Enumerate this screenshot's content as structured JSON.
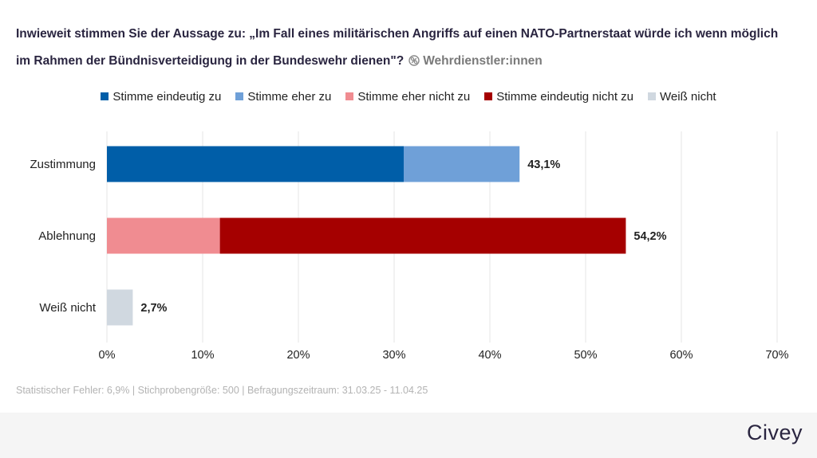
{
  "question": "Inwieweit stimmen Sie der Aussage zu: „Im Fall eines militärischen Angriffs auf einen NATO-Partnerstaat würde ich wenn möglich im Rahmen der Bündnisverteidigung in der Bundeswehr dienen\"?",
  "filter": "Wehrdienstler:innen",
  "icons": {
    "filter": "link-filter-icon"
  },
  "footer": "Statistischer Fehler: 6,9% | Stichprobengröße: 500 | Befragungszeitraum: 31.03.25 - 11.04.25",
  "brand": "Civey",
  "chart_data": {
    "type": "bar",
    "orientation": "horizontal",
    "stacked": true,
    "categories": [
      "Zustimmung",
      "Ablehnung",
      "Weiß nicht"
    ],
    "legend": [
      {
        "name": "Stimme eindeutig zu",
        "color": "#005ea8"
      },
      {
        "name": "Stimme eher zu",
        "color": "#6fa0d8"
      },
      {
        "name": "Stimme eher nicht zu",
        "color": "#f08c91"
      },
      {
        "name": "Stimme eindeutig nicht zu",
        "color": "#a50000"
      },
      {
        "name": "Weiß nicht",
        "color": "#d0d8e0"
      }
    ],
    "bars": [
      {
        "category": "Zustimmung",
        "segments": [
          {
            "series": "Stimme eindeutig zu",
            "value": 31.0,
            "color": "#005ea8"
          },
          {
            "series": "Stimme eher zu",
            "value": 12.1,
            "color": "#6fa0d8"
          }
        ],
        "total": 43.1,
        "total_label": "43,1%"
      },
      {
        "category": "Ablehnung",
        "segments": [
          {
            "series": "Stimme eher nicht zu",
            "value": 11.8,
            "color": "#f08c91"
          },
          {
            "series": "Stimme eindeutig nicht zu",
            "value": 42.4,
            "color": "#a50000"
          }
        ],
        "total": 54.2,
        "total_label": "54,2%"
      },
      {
        "category": "Weiß nicht",
        "segments": [
          {
            "series": "Weiß nicht",
            "value": 2.7,
            "color": "#d0d8e0"
          }
        ],
        "total": 2.7,
        "total_label": "2,7%"
      }
    ],
    "xlim": [
      0,
      70
    ],
    "xticks": [
      0,
      10,
      20,
      30,
      40,
      50,
      60,
      70
    ],
    "xtick_labels": [
      "0%",
      "10%",
      "20%",
      "30%",
      "40%",
      "50%",
      "60%",
      "70%"
    ],
    "grid": true,
    "legend_position": "top-center"
  }
}
